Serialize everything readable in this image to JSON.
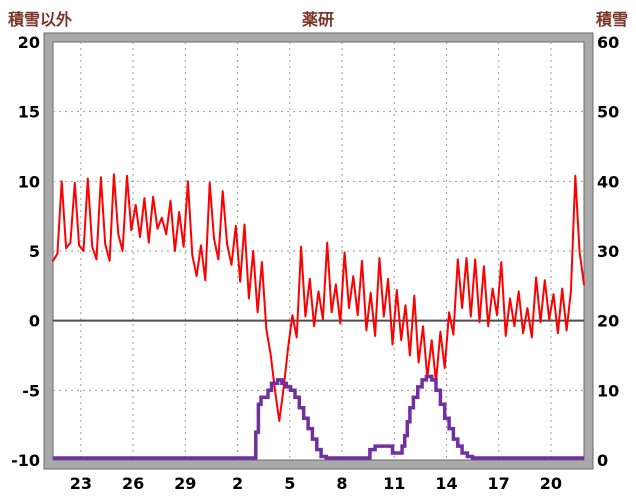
{
  "header": {
    "left_label": "積雪以外",
    "title": "薬研",
    "right_label": "積雪"
  },
  "colors": {
    "label_text": "#7b3428",
    "frame": "#a9a9a9",
    "frame_edge": "#6b6b6b",
    "grid": "#9a9a9a",
    "zero_line": "#4d4d4d",
    "temperature_line": "#ff0000",
    "snow_line": "#7030a0"
  },
  "chart_data": {
    "type": "line",
    "title": "薬研",
    "left_axis": {
      "label": "積雪以外",
      "min": -10,
      "max": 20,
      "ticks": [
        20,
        15,
        10,
        5,
        0,
        -5,
        -10
      ]
    },
    "right_axis": {
      "label": "積雪",
      "min": 0,
      "max": 60,
      "ticks": [
        60,
        50,
        40,
        30,
        20,
        10,
        0
      ]
    },
    "x_axis": {
      "range": [
        -1.6,
        28.9
      ],
      "tick_positions": [
        0,
        3,
        6,
        9,
        12,
        15,
        18,
        21,
        24,
        27
      ],
      "tick_labels": [
        "23",
        "26",
        "29",
        "2",
        "5",
        "8",
        "11",
        "14",
        "17",
        "20"
      ]
    },
    "zero_line_left_value": 0,
    "grid": true,
    "series": [
      {
        "name": "積雪以外",
        "axis": "left",
        "type": "line",
        "color": "#ff0000",
        "x_start": -1.6,
        "x_step": 0.25,
        "values": [
          4.3,
          4.8,
          10.0,
          5.2,
          5.6,
          9.9,
          5.4,
          5.0,
          10.2,
          5.3,
          4.4,
          10.3,
          5.5,
          4.3,
          10.5,
          6.2,
          5.0,
          10.4,
          6.5,
          8.3,
          6.0,
          8.8,
          5.6,
          8.9,
          6.6,
          7.4,
          6.2,
          8.6,
          5.0,
          7.8,
          5.3,
          10.0,
          4.7,
          3.2,
          5.4,
          2.9,
          9.9,
          5.9,
          4.4,
          9.3,
          5.5,
          4.0,
          6.8,
          2.8,
          6.9,
          1.6,
          5.0,
          0.6,
          4.2,
          -0.6,
          -2.4,
          -5.0,
          -7.2,
          -4.8,
          -2.0,
          0.4,
          -1.2,
          5.3,
          0.3,
          3.0,
          -0.4,
          2.1,
          0.1,
          5.6,
          0.6,
          2.6,
          -0.2,
          4.9,
          0.9,
          3.2,
          0.4,
          4.3,
          -0.7,
          2.0,
          -1.1,
          4.5,
          0.3,
          3.0,
          -1.7,
          2.2,
          -1.4,
          1.1,
          -2.5,
          1.8,
          -3.0,
          -0.4,
          -4.1,
          -1.4,
          -4.4,
          -0.8,
          -3.4,
          0.6,
          -1.0,
          4.4,
          0.9,
          4.5,
          0.3,
          4.4,
          -0.1,
          3.9,
          -0.4,
          2.3,
          0.4,
          4.2,
          -1.1,
          1.6,
          -0.4,
          2.1,
          -0.9,
          0.9,
          -1.2,
          3.1,
          -0.1,
          2.9,
          0.1,
          1.9,
          -0.9,
          2.3,
          -0.7,
          2.1,
          10.4,
          4.9,
          2.6
        ]
      },
      {
        "name": "積雪",
        "axis": "right",
        "type": "step",
        "color": "#7030a0",
        "points": [
          [
            -1.6,
            0
          ],
          [
            9.9,
            0
          ],
          [
            10.05,
            4
          ],
          [
            10.2,
            8
          ],
          [
            10.35,
            9
          ],
          [
            10.6,
            9
          ],
          [
            10.75,
            10
          ],
          [
            10.95,
            11
          ],
          [
            11.15,
            11
          ],
          [
            11.3,
            11.5
          ],
          [
            11.55,
            11
          ],
          [
            11.8,
            10.5
          ],
          [
            12.05,
            10
          ],
          [
            12.3,
            9
          ],
          [
            12.55,
            7.5
          ],
          [
            12.8,
            6
          ],
          [
            13.05,
            4.5
          ],
          [
            13.3,
            3
          ],
          [
            13.55,
            1.5
          ],
          [
            13.8,
            0.5
          ],
          [
            14.1,
            0
          ],
          [
            16.45,
            0
          ],
          [
            16.6,
            1.5
          ],
          [
            16.9,
            2
          ],
          [
            17.6,
            2
          ],
          [
            17.9,
            1
          ],
          [
            18.3,
            1
          ],
          [
            18.45,
            2
          ],
          [
            18.6,
            3.5
          ],
          [
            18.75,
            5.5
          ],
          [
            18.9,
            7.5
          ],
          [
            19.1,
            9
          ],
          [
            19.35,
            10.5
          ],
          [
            19.6,
            11.5
          ],
          [
            19.85,
            12
          ],
          [
            20.15,
            11.5
          ],
          [
            20.4,
            10
          ],
          [
            20.65,
            8
          ],
          [
            20.9,
            6
          ],
          [
            21.15,
            4.5
          ],
          [
            21.4,
            3
          ],
          [
            21.65,
            2
          ],
          [
            21.9,
            1
          ],
          [
            22.2,
            0.5
          ],
          [
            22.5,
            0
          ],
          [
            28.9,
            0
          ]
        ]
      }
    ]
  }
}
